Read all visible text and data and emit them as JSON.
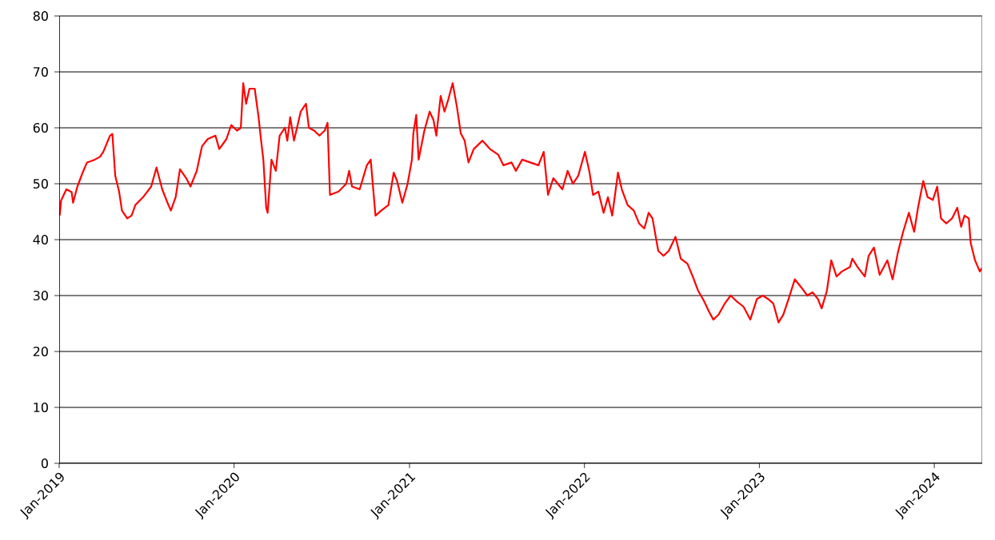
{
  "chart_data": {
    "type": "line",
    "x": [
      "2019-01-02",
      "2019-01-05",
      "2019-01-16",
      "2019-01-27",
      "2019-01-30",
      "2019-02-08",
      "2019-02-19",
      "2019-02-28",
      "2019-03-16",
      "2019-03-27",
      "2019-04-03",
      "2019-04-17",
      "2019-04-22",
      "2019-04-28",
      "2019-05-06",
      "2019-05-12",
      "2019-05-23",
      "2019-06-01",
      "2019-06-09",
      "2019-06-25",
      "2019-07-12",
      "2019-07-23",
      "2019-08-04",
      "2019-08-15",
      "2019-08-22",
      "2019-09-01",
      "2019-09-10",
      "2019-09-23",
      "2019-10-02",
      "2019-10-15",
      "2019-10-26",
      "2019-11-07",
      "2019-11-23",
      "2019-12-01",
      "2019-12-16",
      "2019-12-26",
      "2020-01-07",
      "2020-01-15",
      "2020-01-20",
      "2020-01-26",
      "2020-02-02",
      "2020-02-13",
      "2020-02-21",
      "2020-02-26",
      "2020-03-02",
      "2020-03-08",
      "2020-03-11",
      "2020-03-19",
      "2020-03-28",
      "2020-04-05",
      "2020-04-16",
      "2020-04-21",
      "2020-04-27",
      "2020-05-05",
      "2020-05-19",
      "2020-05-30",
      "2020-06-05",
      "2020-06-16",
      "2020-06-27",
      "2020-07-08",
      "2020-07-14",
      "2020-07-19",
      "2020-08-06",
      "2020-08-22",
      "2020-08-28",
      "2020-09-03",
      "2020-09-19",
      "2020-10-04",
      "2020-10-12",
      "2020-10-22",
      "2020-11-03",
      "2020-11-18",
      "2020-11-29",
      "2020-12-06",
      "2020-12-17",
      "2020-12-28",
      "2021-01-06",
      "2021-01-09",
      "2021-01-15",
      "2021-01-20",
      "2021-02-01",
      "2021-02-12",
      "2021-02-20",
      "2021-02-26",
      "2021-03-07",
      "2021-03-15",
      "2021-03-23",
      "2021-04-01",
      "2021-04-10",
      "2021-04-18",
      "2021-04-26",
      "2021-05-04",
      "2021-05-15",
      "2021-06-02",
      "2021-06-18",
      "2021-07-05",
      "2021-07-16",
      "2021-08-02",
      "2021-08-11",
      "2021-08-24",
      "2021-09-10",
      "2021-09-27",
      "2021-10-08",
      "2021-10-17",
      "2021-10-28",
      "2021-11-16",
      "2021-11-27",
      "2021-12-08",
      "2021-12-19",
      "2022-01-02",
      "2022-01-11",
      "2022-01-19",
      "2022-01-30",
      "2022-02-10",
      "2022-02-19",
      "2022-02-28",
      "2022-03-12",
      "2022-03-20",
      "2022-04-01",
      "2022-04-14",
      "2022-04-25",
      "2022-05-06",
      "2022-05-15",
      "2022-05-23",
      "2022-06-04",
      "2022-06-15",
      "2022-06-26",
      "2022-07-10",
      "2022-07-21",
      "2022-08-04",
      "2022-08-15",
      "2022-08-26",
      "2022-09-07",
      "2022-09-18",
      "2022-09-27",
      "2022-10-08",
      "2022-10-21",
      "2022-11-02",
      "2022-11-13",
      "2022-11-29",
      "2022-12-13",
      "2022-12-27",
      "2023-01-08",
      "2023-01-19",
      "2023-01-30",
      "2023-02-10",
      "2023-02-20",
      "2023-03-03",
      "2023-03-16",
      "2023-03-30",
      "2023-04-11",
      "2023-04-22",
      "2023-05-03",
      "2023-05-11",
      "2023-05-22",
      "2023-05-31",
      "2023-06-11",
      "2023-06-22",
      "2023-07-09",
      "2023-07-14",
      "2023-07-25",
      "2023-08-09",
      "2023-08-17",
      "2023-08-28",
      "2023-09-09",
      "2023-09-25",
      "2023-10-06",
      "2023-10-17",
      "2023-10-28",
      "2023-11-09",
      "2023-11-20",
      "2023-11-28",
      "2023-12-09",
      "2023-12-18",
      "2023-12-29",
      "2024-01-07",
      "2024-01-15",
      "2024-01-26",
      "2024-02-07",
      "2024-02-18",
      "2024-02-26",
      "2024-03-04",
      "2024-03-13",
      "2024-03-17",
      "2024-03-26",
      "2024-04-05",
      "2024-04-09"
    ],
    "series": [
      {
        "color": "#ff0000",
        "values": [
          44.3,
          47,
          49,
          48.5,
          46.6,
          49.5,
          52,
          53.8,
          54.3,
          54.8,
          55.7,
          58.6,
          58.9,
          51.4,
          48.6,
          45.2,
          43.8,
          44.3,
          46.2,
          47.6,
          49.5,
          52.9,
          49,
          46.6,
          45.2,
          47.6,
          52.6,
          51,
          49.5,
          52.3,
          56.7,
          58,
          58.6,
          56.2,
          58,
          60.5,
          59.5,
          60,
          68,
          64.3,
          67,
          67,
          61.9,
          58,
          54.3,
          45.7,
          44.8,
          54.3,
          52.3,
          58.6,
          60,
          57.7,
          61.9,
          57.7,
          62.9,
          64.3,
          60,
          59.5,
          58.6,
          59.5,
          60.9,
          48,
          48.6,
          50,
          52.3,
          49.5,
          49,
          53.3,
          54.3,
          44.3,
          45.2,
          46.2,
          52,
          50.5,
          46.6,
          50,
          54.3,
          59,
          62.3,
          54.3,
          59.5,
          62.9,
          61.4,
          58.6,
          65.7,
          62.9,
          65.1,
          68,
          63.7,
          59,
          57.7,
          53.8,
          56.2,
          57.7,
          56.2,
          55.2,
          53.3,
          53.8,
          52.3,
          54.3,
          53.8,
          53.3,
          55.7,
          48,
          51,
          49,
          52.3,
          50,
          51.4,
          55.7,
          52.3,
          48,
          48.6,
          44.8,
          47.6,
          44.3,
          52,
          49,
          46.2,
          45.2,
          42.9,
          42,
          44.8,
          43.8,
          38,
          37.1,
          38,
          40.5,
          36.6,
          35.7,
          33.4,
          30.9,
          29.1,
          27.1,
          25.7,
          26.6,
          28.6,
          30,
          29.1,
          28,
          25.7,
          29.4,
          30,
          29.4,
          28.6,
          25.2,
          26.6,
          29.4,
          32.9,
          31.4,
          30,
          30.6,
          29.4,
          27.7,
          30.9,
          36.3,
          33.4,
          34.3,
          35.1,
          36.6,
          35.1,
          33.4,
          37.1,
          38.6,
          33.7,
          36.3,
          32.9,
          37.7,
          41.4,
          44.8,
          41.4,
          45.7,
          50.5,
          47.6,
          47.1,
          49.5,
          43.8,
          42.9,
          43.8,
          45.7,
          42.3,
          44.3,
          43.8,
          39.4,
          36.3,
          34.3,
          34.9
        ]
      }
    ],
    "xlim": [
      "2019-01-01",
      "2024-04-10"
    ],
    "xticks": [
      {
        "value": "2019-01-01",
        "label": "Jan-2019"
      },
      {
        "value": "2020-01-01",
        "label": "Jan-2020"
      },
      {
        "value": "2021-01-01",
        "label": "Jan-2021"
      },
      {
        "value": "2022-01-01",
        "label": "Jan-2022"
      },
      {
        "value": "2023-01-01",
        "label": "Jan-2023"
      },
      {
        "value": "2024-01-01",
        "label": "Jan-2024"
      }
    ],
    "ylim": [
      0,
      80
    ],
    "yticks": [
      0,
      10,
      20,
      30,
      40,
      50,
      60,
      70,
      80
    ],
    "grid": "y",
    "marker": "none",
    "line_style": "solid"
  }
}
